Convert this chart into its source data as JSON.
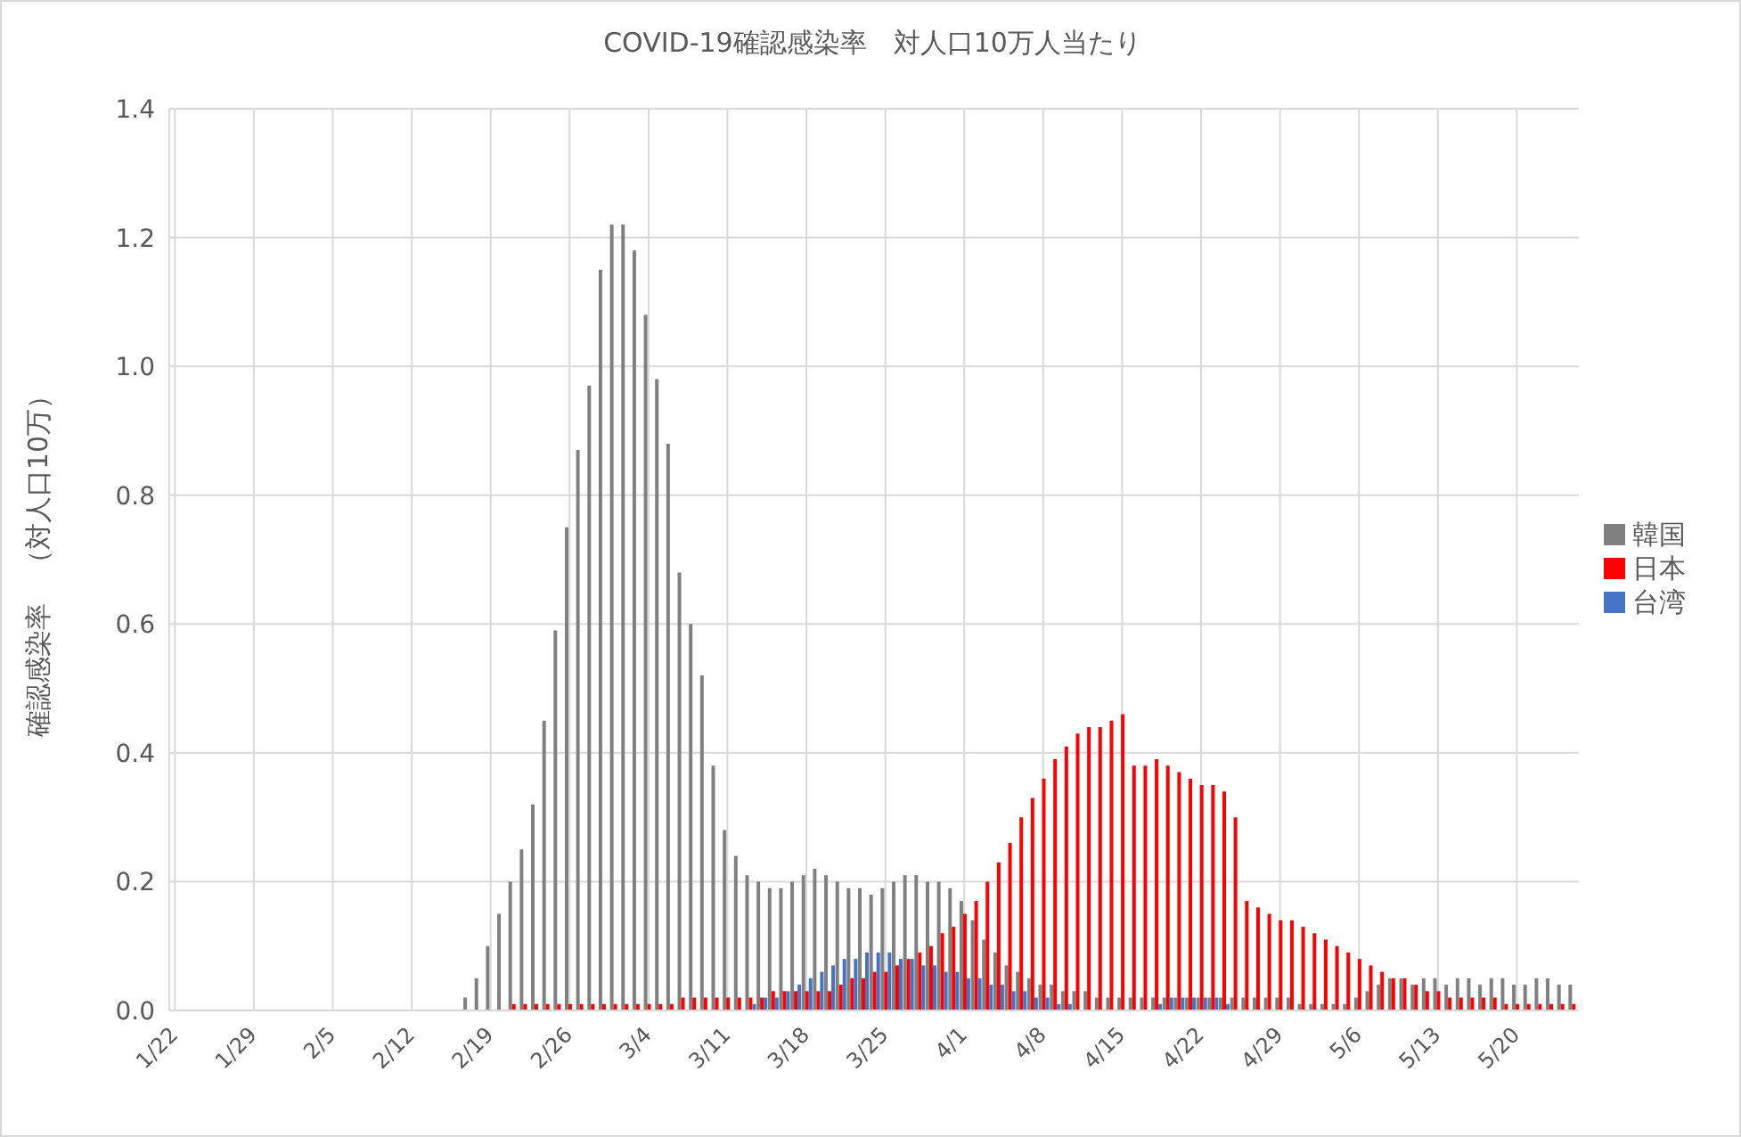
{
  "chart_data": {
    "type": "bar",
    "title": "COVID-19確認感染率　対人口10万人当たり",
    "ylabel": "確認感染率　（対人口10万）",
    "categories": [
      "1/22",
      null,
      null,
      null,
      null,
      null,
      null,
      "1/29",
      null,
      null,
      null,
      null,
      null,
      null,
      "2/5",
      null,
      null,
      null,
      null,
      null,
      null,
      "2/12",
      null,
      null,
      null,
      null,
      null,
      null,
      "2/19",
      null,
      null,
      null,
      null,
      null,
      null,
      "2/26",
      null,
      null,
      null,
      null,
      null,
      null,
      "3/4",
      null,
      null,
      null,
      null,
      null,
      null,
      "3/11",
      null,
      null,
      null,
      null,
      null,
      null,
      "3/18",
      null,
      null,
      null,
      null,
      null,
      null,
      "3/25",
      null,
      null,
      null,
      null,
      null,
      null,
      "4/1",
      null,
      null,
      null,
      null,
      null,
      null,
      "4/8",
      null,
      null,
      null,
      null,
      null,
      null,
      "4/15",
      null,
      null,
      null,
      null,
      null,
      null,
      "4/22",
      null,
      null,
      null,
      null,
      null,
      null,
      "4/29",
      null,
      null,
      null,
      null,
      null,
      null,
      "5/6",
      null,
      null,
      null,
      null,
      null,
      null,
      "5/13",
      null,
      null,
      null,
      null,
      null,
      null,
      "5/20",
      null,
      null,
      null,
      null,
      null
    ],
    "series": [
      {
        "name": "韓国",
        "color": "#808080",
        "values": [
          0,
          0,
          0,
          0,
          0,
          0,
          0,
          0,
          0,
          0,
          0,
          0,
          0,
          0,
          0,
          0,
          0,
          0,
          0,
          0,
          0,
          0,
          0,
          0,
          0,
          0,
          0.02,
          0.05,
          0.1,
          0.15,
          0.2,
          0.25,
          0.32,
          0.45,
          0.59,
          0.75,
          0.87,
          0.97,
          1.15,
          1.22,
          1.22,
          1.18,
          1.08,
          0.98,
          0.88,
          0.68,
          0.6,
          0.52,
          0.38,
          0.28,
          0.24,
          0.21,
          0.2,
          0.19,
          0.19,
          0.2,
          0.21,
          0.22,
          0.21,
          0.2,
          0.19,
          0.19,
          0.18,
          0.19,
          0.2,
          0.21,
          0.21,
          0.2,
          0.2,
          0.19,
          0.17,
          0.14,
          0.11,
          0.09,
          0.07,
          0.06,
          0.05,
          0.04,
          0.04,
          0.03,
          0.03,
          0.03,
          0.02,
          0.02,
          0.02,
          0.02,
          0.02,
          0.02,
          0.02,
          0.02,
          0.02,
          0.02,
          0.02,
          0.02,
          0.02,
          0.02,
          0.02,
          0.02,
          0.02,
          0.02,
          0.01,
          0.01,
          0.01,
          0.01,
          0.01,
          0.02,
          0.03,
          0.04,
          0.05,
          0.05,
          0.04,
          0.05,
          0.05,
          0.04,
          0.05,
          0.05,
          0.04,
          0.05,
          0.05,
          0.04,
          0.04,
          0.05,
          0.05,
          0.04,
          0.04
        ]
      },
      {
        "name": "日本",
        "color": "#ff0000",
        "values": [
          0,
          0,
          0,
          0,
          0,
          0,
          0,
          0,
          0,
          0,
          0,
          0,
          0,
          0,
          0,
          0,
          0,
          0,
          0,
          0,
          0,
          0,
          0,
          0,
          0,
          0,
          0,
          0,
          0,
          0,
          0.01,
          0.01,
          0.01,
          0.01,
          0.01,
          0.01,
          0.01,
          0.01,
          0.01,
          0.01,
          0.01,
          0.01,
          0.01,
          0.01,
          0.01,
          0.02,
          0.02,
          0.02,
          0.02,
          0.02,
          0.02,
          0.02,
          0.02,
          0.03,
          0.03,
          0.03,
          0.03,
          0.03,
          0.03,
          0.04,
          0.05,
          0.05,
          0.06,
          0.06,
          0.07,
          0.08,
          0.09,
          0.1,
          0.12,
          0.13,
          0.15,
          0.17,
          0.2,
          0.23,
          0.26,
          0.3,
          0.33,
          0.36,
          0.39,
          0.41,
          0.43,
          0.44,
          0.44,
          0.45,
          0.46,
          0.38,
          0.38,
          0.39,
          0.38,
          0.37,
          0.36,
          0.35,
          0.35,
          0.34,
          0.3,
          0.17,
          0.16,
          0.15,
          0.14,
          0.14,
          0.13,
          0.12,
          0.11,
          0.1,
          0.09,
          0.08,
          0.07,
          0.06,
          0.05,
          0.05,
          0.04,
          0.03,
          0.03,
          0.02,
          0.02,
          0.02,
          0.02,
          0.02,
          0.01,
          0.01,
          0.01,
          0.01,
          0.01,
          0.01,
          0.01
        ]
      },
      {
        "name": "台湾",
        "color": "#4472c4",
        "values": [
          0,
          0,
          0,
          0,
          0,
          0,
          0,
          0,
          0,
          0,
          0,
          0,
          0,
          0,
          0,
          0,
          0,
          0,
          0,
          0,
          0,
          0,
          0,
          0,
          0,
          0,
          0,
          0,
          0,
          0,
          0,
          0,
          0,
          0,
          0,
          0,
          0,
          0,
          0,
          0,
          0,
          0,
          0,
          0,
          0,
          0,
          0,
          0,
          0,
          0,
          0,
          0.01,
          0.02,
          0.02,
          0.03,
          0.04,
          0.05,
          0.06,
          0.07,
          0.08,
          0.08,
          0.09,
          0.09,
          0.09,
          0.08,
          0.08,
          0.07,
          0.07,
          0.06,
          0.06,
          0.05,
          0.05,
          0.04,
          0.04,
          0.03,
          0.03,
          0.02,
          0.02,
          0.01,
          0.01,
          0,
          0,
          0,
          0,
          0,
          0,
          0,
          0.01,
          0.02,
          0.02,
          0.02,
          0.02,
          0.02,
          0.01,
          0,
          0,
          0,
          0,
          0,
          0,
          0,
          0,
          0,
          0,
          0,
          0,
          0,
          0,
          0,
          0,
          0,
          0,
          0,
          0,
          0,
          0,
          0,
          0,
          0,
          0,
          0,
          0,
          0,
          0,
          0
        ]
      }
    ],
    "ylim": [
      0,
      1.4
    ],
    "yticks": [
      {
        "value": 0,
        "label": "0.0"
      },
      {
        "value": 0.2,
        "label": "0.2"
      },
      {
        "value": 0.4,
        "label": "0.4"
      },
      {
        "value": 0.6,
        "label": "0.6"
      },
      {
        "value": 0.8,
        "label": "0.8"
      },
      {
        "value": 1,
        "label": "1.0"
      },
      {
        "value": 1.2,
        "label": "1.2"
      },
      {
        "value": 1.4,
        "label": "1.4"
      }
    ],
    "grid": true,
    "legend": "right"
  }
}
